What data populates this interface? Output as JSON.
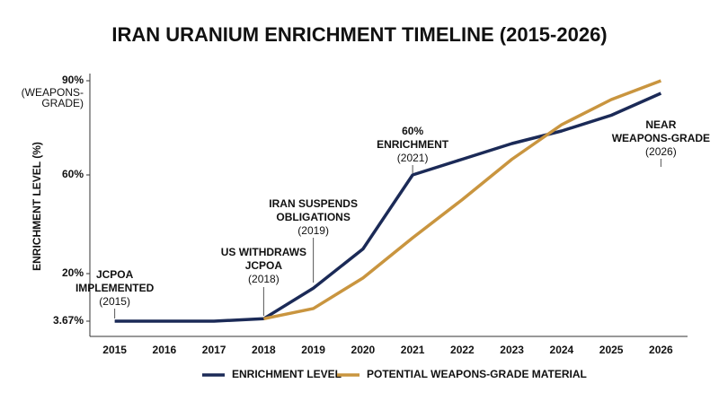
{
  "chart_data": {
    "type": "line",
    "title": "IRAN URANIUM ENRICHMENT TIMELINE (2015-2026)",
    "y_label": "ENRICHMENT LEVEL (%)",
    "categories": [
      "2015",
      "2016",
      "2017",
      "2018",
      "2019",
      "2020",
      "2021",
      "2022",
      "2023",
      "2024",
      "2025",
      "2026"
    ],
    "series": [
      {
        "name": "ENRICHMENT LEVEL",
        "color": "#1b2a57",
        "values": [
          3.67,
          3.67,
          3.67,
          4.5,
          15,
          30,
          60,
          65,
          70,
          74,
          79,
          86
        ]
      },
      {
        "name": "POTENTIAL WEAPONS-GRADE MATERIAL",
        "color": "#c9953f",
        "values": [
          null,
          null,
          null,
          4.5,
          8,
          18.5,
          34.5,
          50,
          65,
          76,
          84,
          90
        ]
      }
    ],
    "ylim": [
      0,
      92
    ],
    "yticks": [
      {
        "value": 3.67,
        "label": "3.67%"
      },
      {
        "value": 20,
        "label": "20%"
      },
      {
        "value": 60,
        "label": "60%"
      },
      {
        "value": 90,
        "label": "90%"
      }
    ],
    "y_note": [
      "(WEAPONS-",
      "GRADE)"
    ],
    "annotations": [
      {
        "lines": [
          "JCPOA",
          "IMPLEMENTED"
        ],
        "year": "(2015)"
      },
      {
        "lines": [
          "US WITHDRAWS",
          "JCPOA"
        ],
        "year": "(2018)"
      },
      {
        "lines": [
          "IRAN SUSPENDS",
          "OBLIGATIONS"
        ],
        "year": "(2019)"
      },
      {
        "lines": [
          "60%",
          "ENRICHMENT"
        ],
        "year": "(2021)"
      },
      {
        "lines": [
          "NEAR",
          "WEAPONS-GRADE"
        ],
        "year": "(2026)"
      }
    ],
    "grid": false,
    "legend": "bottom"
  }
}
